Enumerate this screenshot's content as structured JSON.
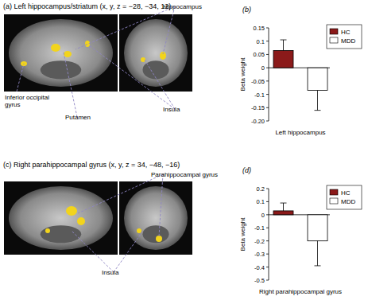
{
  "panels": [
    {
      "title": "(a) Left hippocampus/striatum (x, y, z = −28, −34, 12)",
      "labels": [
        "Hippocampus",
        "Inferior occipital gyrus",
        "Putamen",
        "Insula"
      ]
    },
    {
      "title": "(c) Right parahippocampal gyrus (x, y, z = 34, −48, −16)",
      "labels": [
        "Parahippocampal gyrus",
        "Insula"
      ]
    }
  ],
  "chart_data": [
    {
      "type": "bar",
      "title": "(b)",
      "y_label": "Beta weight",
      "categories": [
        "Left hippocampus"
      ],
      "series": [
        {
          "name": "HC",
          "color": "#8b1a1a",
          "values": [
            0.065
          ],
          "errors": [
            0.04
          ]
        },
        {
          "name": "MDD",
          "color": "#ffffff",
          "values": [
            -0.085
          ],
          "errors": [
            0.075
          ]
        }
      ],
      "ylim": [
        -0.2,
        0.15
      ],
      "yticks": [
        {
          "value": -0.2,
          "label": "-0.20"
        },
        -0.15,
        -0.1,
        -0.05,
        0,
        0.05,
        0.1,
        0.15
      ],
      "legend": "upper right"
    },
    {
      "type": "bar",
      "title": "(d)",
      "y_label": "Beta weight",
      "categories": [
        "Right parahippocampal gyrus"
      ],
      "series": [
        {
          "name": "HC",
          "color": "#8b1a1a",
          "values": [
            0.03
          ],
          "errors": [
            0.06
          ]
        },
        {
          "name": "MDD",
          "color": "#ffffff",
          "values": [
            -0.2
          ],
          "errors": [
            0.19
          ]
        }
      ],
      "ylim": [
        -0.5,
        0.2
      ],
      "yticks": [
        -0.5,
        -0.4,
        -0.3,
        -0.2,
        -0.1,
        0,
        0.1,
        0.2
      ],
      "legend": "upper right"
    }
  ]
}
